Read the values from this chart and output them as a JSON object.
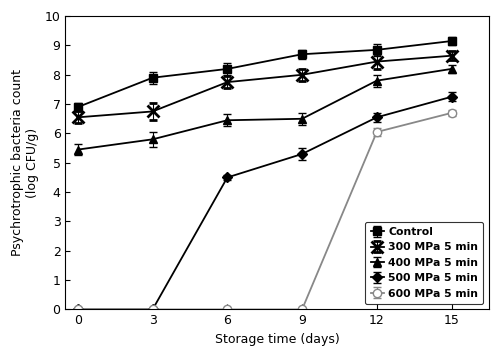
{
  "x": [
    0,
    3,
    6,
    9,
    12,
    15
  ],
  "control": {
    "y": [
      6.9,
      7.9,
      8.2,
      8.7,
      8.85,
      9.15
    ],
    "yerr": [
      0.15,
      0.2,
      0.2,
      0.15,
      0.2,
      0.15
    ]
  },
  "mpa300": {
    "y": [
      6.55,
      6.75,
      7.75,
      8.0,
      8.45,
      8.65
    ],
    "yerr": [
      0.2,
      0.3,
      0.2,
      0.2,
      0.25,
      0.15
    ]
  },
  "mpa400": {
    "y": [
      5.45,
      5.8,
      6.45,
      6.5,
      7.8,
      8.2
    ],
    "yerr": [
      0.2,
      0.25,
      0.2,
      0.2,
      0.2,
      0.15
    ]
  },
  "mpa500": {
    "y": [
      0.0,
      0.0,
      4.5,
      5.3,
      6.55,
      7.25
    ],
    "yerr": [
      0.0,
      0.0,
      0.1,
      0.2,
      0.15,
      0.15
    ]
  },
  "mpa600": {
    "y": [
      0.0,
      0.0,
      0.0,
      0.0,
      6.05,
      6.7
    ],
    "yerr": [
      0.0,
      0.0,
      0.0,
      0.0,
      0.15,
      0.1
    ]
  },
  "xlim": [
    -0.5,
    16.5
  ],
  "ylim": [
    0,
    10
  ],
  "xticks": [
    0,
    3,
    6,
    9,
    12,
    15
  ],
  "yticks": [
    0,
    1,
    2,
    3,
    4,
    5,
    6,
    7,
    8,
    9,
    10
  ],
  "xlabel": "Storage time (days)",
  "ylabel": "Psychrotrophic bacteria count\n(log CFU/g)",
  "legend_labels": [
    "Control",
    "300 MPa 5 min",
    "400 MPa 5 min",
    "500 MPa 5 min",
    "600 MPa 5 min"
  ],
  "background_color": "#ffffff",
  "line_color": "#000000",
  "line_color_600": "#888888"
}
